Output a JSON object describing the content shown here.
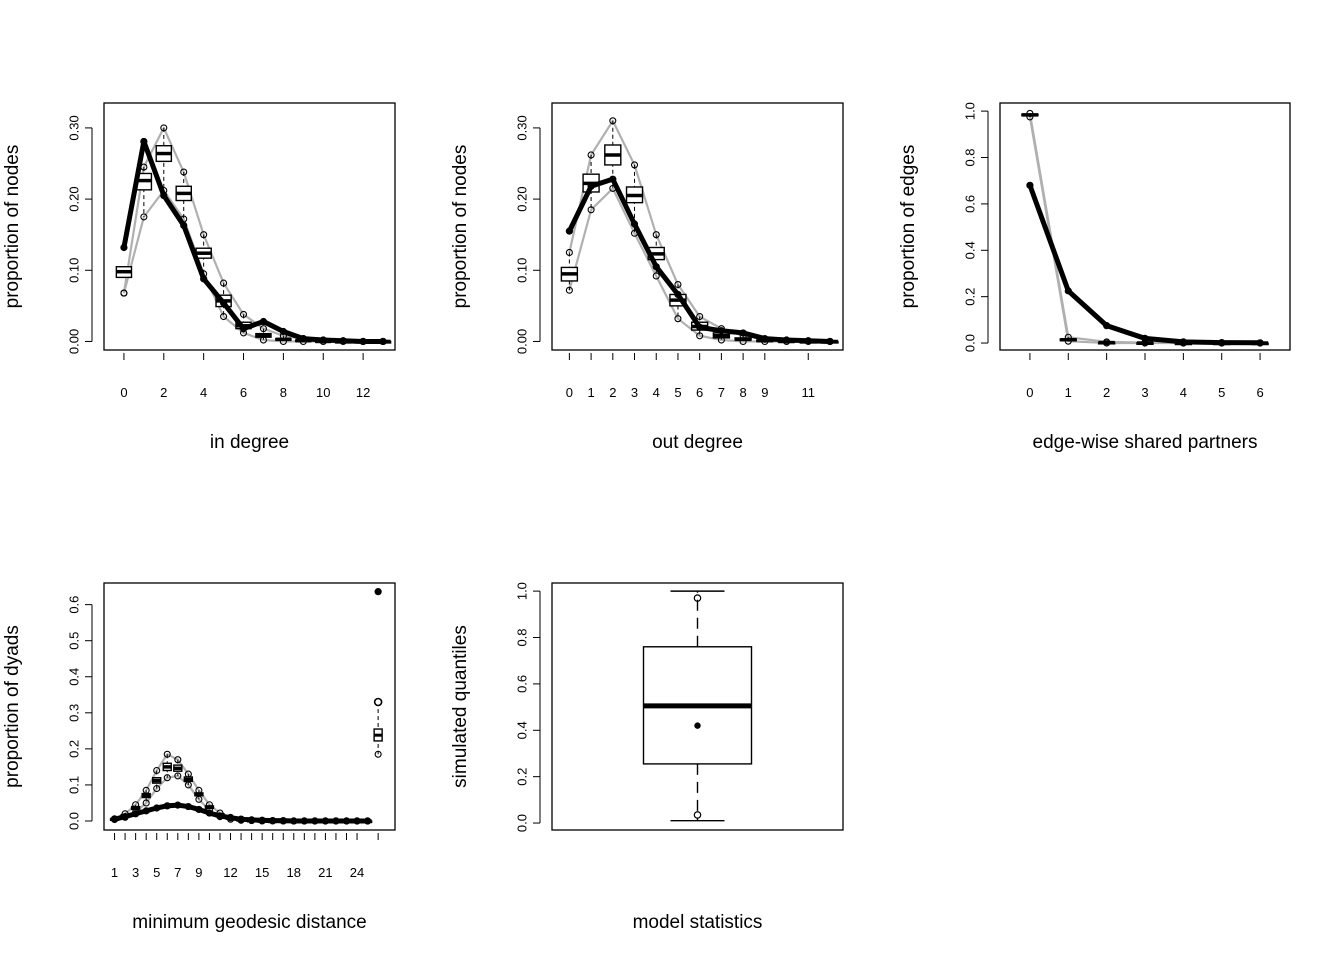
{
  "colors": {
    "observed": "#000000",
    "simulated": "#b0b0b0",
    "box": "#000000"
  },
  "chart_data": [
    {
      "type": "boxplot-line",
      "id": "indegree",
      "xlabel": "in degree",
      "ylabel": "proportion of nodes",
      "x": [
        0,
        1,
        2,
        3,
        4,
        5,
        6,
        7,
        8,
        9,
        10,
        11,
        12,
        13
      ],
      "xticks": [
        "0",
        "2",
        "4",
        "6",
        "8",
        "10",
        "12"
      ],
      "xtick_values": [
        0,
        2,
        4,
        6,
        8,
        10,
        12
      ],
      "xlim": [
        -1,
        13.6
      ],
      "ylim": [
        -0.012,
        0.335
      ],
      "yticks": [
        "0.00",
        "0.10",
        "0.20",
        "0.30"
      ],
      "ytick_values": [
        0,
        0.1,
        0.2,
        0.3
      ],
      "observed": [
        0.132,
        0.281,
        0.205,
        0.163,
        0.088,
        0.054,
        0.018,
        0.028,
        0.014,
        0.004,
        0.002,
        0.001,
        0.0,
        0.0
      ],
      "sim_upper": [
        0.068,
        0.245,
        0.3,
        0.238,
        0.15,
        0.082,
        0.038,
        0.018,
        0.008,
        0.004,
        0.002,
        0.001,
        0.0,
        0.0
      ],
      "sim_lower": [
        0.068,
        0.175,
        0.212,
        0.172,
        0.095,
        0.035,
        0.012,
        0.002,
        0.0,
        0.0,
        0.0,
        0.0,
        0.0,
        0.0
      ],
      "box_q1": [
        0.09,
        0.213,
        0.253,
        0.198,
        0.117,
        0.049,
        0.018,
        0.006,
        0.002,
        0.001,
        0.0,
        0.0,
        0.0,
        0.0
      ],
      "box_med": [
        0.098,
        0.226,
        0.264,
        0.208,
        0.124,
        0.057,
        0.022,
        0.008,
        0.003,
        0.001,
        0.0,
        0.0,
        0.0,
        0.0
      ],
      "box_q3": [
        0.105,
        0.236,
        0.275,
        0.218,
        0.131,
        0.065,
        0.027,
        0.011,
        0.004,
        0.002,
        0.001,
        0.0,
        0.0,
        0.0
      ]
    },
    {
      "type": "boxplot-line",
      "id": "outdegree",
      "xlabel": "out degree",
      "ylabel": "proportion of nodes",
      "x": [
        0,
        1,
        2,
        3,
        4,
        5,
        6,
        7,
        8,
        9,
        10,
        11,
        12
      ],
      "xticks": [
        "0",
        "1",
        "2",
        "3",
        "4",
        "5",
        "6",
        "7",
        "8",
        "9",
        "11"
      ],
      "xtick_values": [
        0,
        1,
        2,
        3,
        4,
        5,
        6,
        7,
        8,
        9,
        11
      ],
      "xlim": [
        -0.8,
        12.6
      ],
      "ylim": [
        -0.012,
        0.335
      ],
      "yticks": [
        "0.00",
        "0.10",
        "0.20",
        "0.30"
      ],
      "ytick_values": [
        0,
        0.1,
        0.2,
        0.3
      ],
      "observed": [
        0.155,
        0.218,
        0.228,
        0.165,
        0.105,
        0.066,
        0.02,
        0.015,
        0.012,
        0.004,
        0.002,
        0.001,
        0.0
      ],
      "sim_upper": [
        0.125,
        0.262,
        0.31,
        0.248,
        0.15,
        0.08,
        0.035,
        0.018,
        0.008,
        0.003,
        0.002,
        0.001,
        0.0
      ],
      "sim_lower": [
        0.072,
        0.185,
        0.215,
        0.152,
        0.092,
        0.032,
        0.008,
        0.002,
        0.0,
        0.0,
        0.0,
        0.0,
        0.0
      ],
      "box_q1": [
        0.085,
        0.21,
        0.248,
        0.195,
        0.115,
        0.05,
        0.016,
        0.005,
        0.002,
        0.0,
        0.0,
        0.0,
        0.0
      ],
      "box_med": [
        0.095,
        0.222,
        0.262,
        0.205,
        0.123,
        0.058,
        0.021,
        0.008,
        0.003,
        0.001,
        0.0,
        0.0,
        0.0
      ],
      "box_q3": [
        0.104,
        0.235,
        0.276,
        0.217,
        0.132,
        0.066,
        0.027,
        0.012,
        0.005,
        0.002,
        0.001,
        0.0,
        0.0
      ]
    },
    {
      "type": "boxplot-line",
      "id": "esp",
      "xlabel": "edge-wise shared partners",
      "ylabel": "proportion of edges",
      "x": [
        0,
        1,
        2,
        3,
        4,
        5,
        6
      ],
      "xticks": [
        "0",
        "1",
        "2",
        "3",
        "4",
        "5",
        "6"
      ],
      "xtick_values": [
        0,
        1,
        2,
        3,
        4,
        5,
        6
      ],
      "xlim": [
        -0.78,
        6.78
      ],
      "ylim": [
        -0.03,
        1.035
      ],
      "yticks": [
        "0.0",
        "0.2",
        "0.4",
        "0.6",
        "0.8",
        "1.0"
      ],
      "ytick_values": [
        0,
        0.2,
        0.4,
        0.6,
        0.8,
        1.0
      ],
      "observed": [
        0.68,
        0.225,
        0.075,
        0.02,
        0.005,
        0.002,
        0.001
      ],
      "sim_upper": [
        0.99,
        0.025,
        0.005,
        0.002,
        0.0,
        0.0,
        0.0
      ],
      "sim_lower": [
        0.975,
        0.008,
        0.0,
        0.0,
        0.0,
        0.0,
        0.0
      ],
      "box_q1": [
        0.981,
        0.012,
        0.001,
        0.0,
        0.0,
        0.0,
        0.0
      ],
      "box_med": [
        0.984,
        0.014,
        0.002,
        0.0,
        0.0,
        0.0,
        0.0
      ],
      "box_q3": [
        0.987,
        0.017,
        0.003,
        0.001,
        0.0,
        0.0,
        0.0
      ]
    },
    {
      "type": "boxplot-line",
      "id": "geodesic",
      "xlabel": "minimum geodesic distance",
      "ylabel": "proportion of dyads",
      "x": [
        1,
        2,
        3,
        4,
        5,
        6,
        7,
        8,
        9,
        10,
        11,
        12,
        13,
        14,
        15,
        16,
        17,
        18,
        19,
        20,
        21,
        22,
        23,
        24,
        25
      ],
      "xticks": [
        "1",
        "3",
        "5",
        "7",
        "9",
        "12",
        "15",
        "18",
        "21",
        "24"
      ],
      "xtick_values": [
        1,
        3,
        5,
        7,
        9,
        12,
        15,
        18,
        21,
        24
      ],
      "minor_xtick_values": [
        1,
        2,
        3,
        4,
        5,
        6,
        7,
        8,
        9,
        10,
        11,
        12,
        13,
        14,
        15,
        16,
        17,
        18,
        19,
        20,
        21,
        22,
        23,
        24,
        26
      ],
      "xlim": [
        0.0,
        27.6
      ],
      "ylim": [
        -0.025,
        0.66
      ],
      "yticks": [
        "0.0",
        "0.1",
        "0.2",
        "0.3",
        "0.4",
        "0.5",
        "0.6"
      ],
      "ytick_values": [
        0,
        0.1,
        0.2,
        0.3,
        0.4,
        0.5,
        0.6
      ],
      "observed": [
        0.005,
        0.012,
        0.02,
        0.028,
        0.036,
        0.042,
        0.044,
        0.04,
        0.032,
        0.022,
        0.014,
        0.009,
        0.005,
        0.003,
        0.002,
        0.001,
        0.001,
        0.0,
        0.0,
        0.0,
        0.0,
        0.0,
        0.0,
        0.0,
        0.0
      ],
      "sim_upper": [
        0.006,
        0.02,
        0.045,
        0.085,
        0.14,
        0.185,
        0.17,
        0.13,
        0.085,
        0.045,
        0.022,
        0.01,
        0.005,
        0.003,
        0.001,
        0.001,
        0.0,
        0.0,
        0.0,
        0.0,
        0.0,
        0.0,
        0.0,
        0.0,
        0.0
      ],
      "sim_lower": [
        0.004,
        0.01,
        0.025,
        0.05,
        0.09,
        0.12,
        0.125,
        0.1,
        0.06,
        0.03,
        0.012,
        0.005,
        0.002,
        0.001,
        0.0,
        0.0,
        0.0,
        0.0,
        0.0,
        0.0,
        0.0,
        0.0,
        0.0,
        0.0,
        0.0
      ],
      "box_q1": [
        0.004,
        0.013,
        0.032,
        0.065,
        0.105,
        0.14,
        0.138,
        0.11,
        0.07,
        0.035,
        0.016,
        0.006,
        0.003,
        0.001,
        0.0,
        0.0,
        0.0,
        0.0,
        0.0,
        0.0,
        0.0,
        0.0,
        0.0,
        0.0,
        0.0
      ],
      "box_med": [
        0.005,
        0.015,
        0.036,
        0.07,
        0.112,
        0.15,
        0.146,
        0.115,
        0.074,
        0.038,
        0.018,
        0.008,
        0.004,
        0.002,
        0.001,
        0.0,
        0.0,
        0.0,
        0.0,
        0.0,
        0.0,
        0.0,
        0.0,
        0.0,
        0.0
      ],
      "box_q3": [
        0.006,
        0.017,
        0.04,
        0.076,
        0.12,
        0.16,
        0.155,
        0.122,
        0.078,
        0.042,
        0.02,
        0.009,
        0.004,
        0.002,
        0.001,
        0.0,
        0.0,
        0.0,
        0.0,
        0.0,
        0.0,
        0.0,
        0.0,
        0.0,
        0.0
      ],
      "inf_point": {
        "x": 26,
        "observed": 0.636,
        "sim_max": 0.33,
        "sim_min": 0.185,
        "box_q1": 0.222,
        "box_med": 0.238,
        "box_q3": 0.255
      }
    },
    {
      "type": "boxplot",
      "id": "modelstats",
      "xlabel": "model statistics",
      "ylabel": "simulated quantiles",
      "ylim": [
        -0.03,
        1.035
      ],
      "yticks": [
        "0.0",
        "0.2",
        "0.4",
        "0.6",
        "0.8",
        "1.0"
      ],
      "ytick_values": [
        0,
        0.2,
        0.4,
        0.6,
        0.8,
        1.0
      ],
      "whisker_low": 0.01,
      "q1": 0.255,
      "median": 0.505,
      "q3": 0.76,
      "whisker_high": 1.0,
      "outliers": [
        0.97,
        0.035
      ],
      "observed_point": 0.42
    }
  ]
}
